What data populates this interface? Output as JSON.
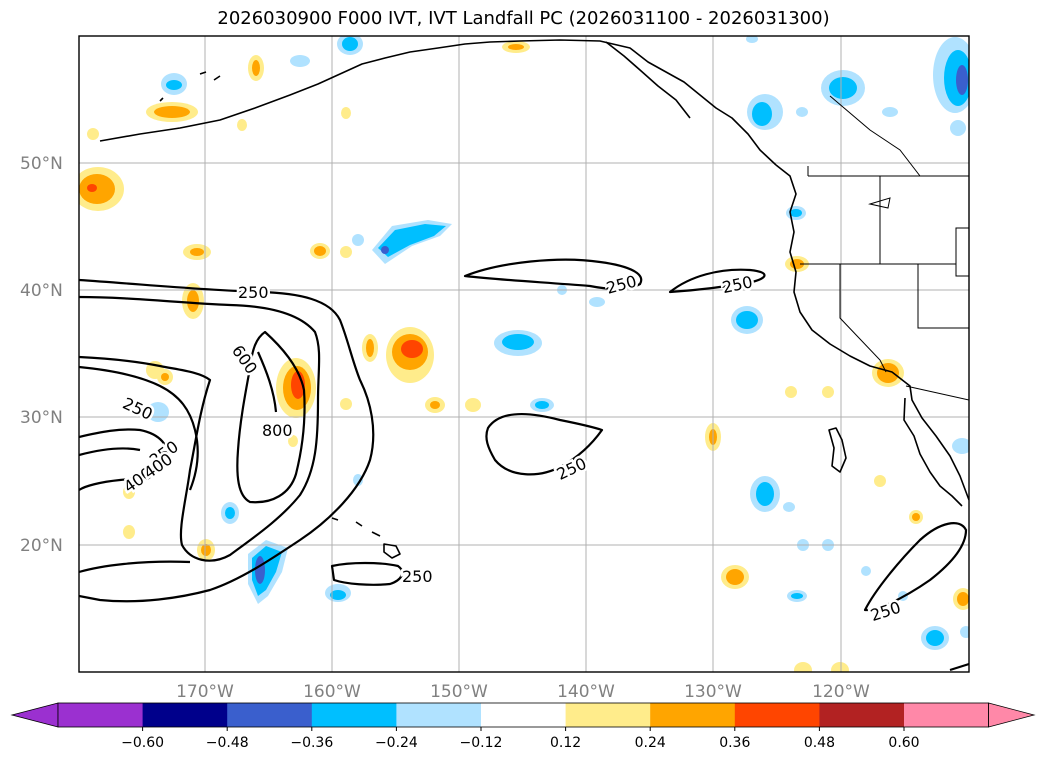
{
  "title": "2026030900 F000 IVT, IVT Landfall PC (2026031100 - 2026031300)",
  "axes": {
    "lon_labels": [
      "170°W",
      "160°W",
      "150°W",
      "140°W",
      "130°W",
      "120°W"
    ],
    "lat_labels": [
      "50°N",
      "40°N",
      "30°N",
      "20°N"
    ],
    "label_color": "#808080"
  },
  "contour_labels": [
    "250",
    "250",
    "250",
    "250",
    "600",
    "800",
    "250",
    "250",
    "400",
    "400",
    "250",
    "250"
  ],
  "colorbar": {
    "ticks": [
      "−0.60",
      "−0.48",
      "−0.36",
      "−0.24",
      "−0.12",
      "0.12",
      "0.24",
      "0.36",
      "0.48",
      "0.60"
    ],
    "colors": [
      "#9b30d0",
      "#00008b",
      "#3a5fcd",
      "#00bfff",
      "#b0e2ff",
      "#ffffff",
      "#ffec8b",
      "#ffa500",
      "#ff4500",
      "#b22222",
      "#ff88a8"
    ]
  },
  "fill_colors": {
    "light_blue": "#b0e2ff",
    "cyan": "#00bfff",
    "blue": "#3a5fcd",
    "yellow": "#ffec8b",
    "orange": "#ffa500",
    "red": "#ff4500"
  }
}
